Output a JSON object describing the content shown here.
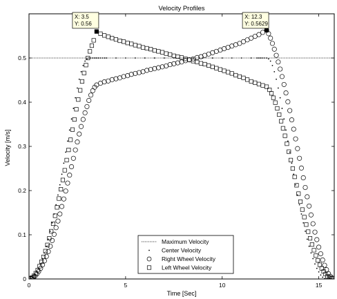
{
  "chart_data": {
    "type": "scatter",
    "title": "Velocity Profiles",
    "xlabel": "Time [Sec]",
    "ylabel": "Velocity [m/s]",
    "xlim": [
      0,
      15.8
    ],
    "ylim": [
      0,
      0.6
    ],
    "xticks": [
      0,
      5,
      10,
      15
    ],
    "yticks": [
      0,
      0.1,
      0.2,
      0.3,
      0.4,
      0.5
    ],
    "xtick_labels": [
      "0",
      "5",
      "10",
      "15"
    ],
    "ytick_labels": [
      "0",
      "0.1",
      "0.2",
      "0.3",
      "0.4",
      "0.5"
    ],
    "grid": false,
    "legend_position": "bottom-center",
    "series": [
      {
        "name": "Maximum Velocity",
        "style": "dotted-line",
        "x": [
          0,
          15.8
        ],
        "y": [
          0.5,
          0.5
        ]
      },
      {
        "name": "Center Velocity",
        "style": "dot",
        "x": [
          0.0,
          0.1,
          0.2,
          0.3,
          0.4,
          0.5,
          0.6,
          0.7,
          0.8,
          0.9,
          1.0,
          1.1,
          1.2,
          1.3,
          1.4,
          1.5,
          1.6,
          1.7,
          1.8,
          1.9,
          2.0,
          2.1,
          2.2,
          2.3,
          2.4,
          2.5,
          2.6,
          2.7,
          2.8,
          2.9,
          3.0,
          3.1,
          3.2,
          3.3,
          3.4,
          3.5,
          3.6,
          3.7,
          3.8,
          3.9,
          4.0,
          4.5,
          5.0,
          5.5,
          6.0,
          6.5,
          7.0,
          7.5,
          8.0,
          8.5,
          9.0,
          9.5,
          10.0,
          10.5,
          11.0,
          11.5,
          11.8,
          11.9,
          12.0,
          12.1,
          12.2,
          12.3,
          12.4,
          12.5,
          12.6,
          12.7,
          12.8,
          12.9,
          13.0,
          13.1,
          13.2,
          13.3,
          13.4,
          13.5,
          13.6,
          13.7,
          13.8,
          13.9,
          14.0,
          14.1,
          14.2,
          14.3,
          14.4,
          14.5,
          14.6,
          14.7,
          14.8,
          14.9,
          15.0,
          15.1,
          15.2,
          15.3,
          15.4,
          15.5,
          15.6,
          15.7
        ],
        "y": [
          0.0,
          0.001,
          0.004,
          0.009,
          0.016,
          0.024,
          0.034,
          0.046,
          0.059,
          0.074,
          0.09,
          0.108,
          0.127,
          0.147,
          0.168,
          0.19,
          0.213,
          0.237,
          0.262,
          0.287,
          0.312,
          0.337,
          0.362,
          0.386,
          0.41,
          0.432,
          0.452,
          0.469,
          0.483,
          0.493,
          0.498,
          0.5,
          0.5,
          0.5,
          0.5,
          0.5,
          0.5,
          0.5,
          0.5,
          0.5,
          0.5,
          0.5,
          0.5,
          0.5,
          0.5,
          0.5,
          0.5,
          0.5,
          0.5,
          0.5,
          0.5,
          0.5,
          0.5,
          0.5,
          0.5,
          0.5,
          0.5,
          0.5,
          0.5,
          0.5,
          0.5,
          0.5,
          0.498,
          0.493,
          0.483,
          0.469,
          0.452,
          0.432,
          0.41,
          0.386,
          0.362,
          0.337,
          0.312,
          0.287,
          0.262,
          0.237,
          0.213,
          0.19,
          0.168,
          0.147,
          0.127,
          0.108,
          0.09,
          0.074,
          0.059,
          0.046,
          0.034,
          0.024,
          0.016,
          0.009,
          0.004,
          0.001,
          0.0,
          0.0,
          0.0,
          0.0
        ]
      },
      {
        "name": "Right Wheel Velocity",
        "style": "circle",
        "x": [
          0.1,
          0.2,
          0.3,
          0.4,
          0.5,
          0.6,
          0.7,
          0.8,
          0.9,
          1.0,
          1.1,
          1.2,
          1.3,
          1.4,
          1.5,
          1.6,
          1.7,
          1.8,
          1.9,
          2.0,
          2.1,
          2.2,
          2.3,
          2.4,
          2.5,
          2.6,
          2.7,
          2.8,
          2.9,
          3.0,
          3.1,
          3.2,
          3.3,
          3.4,
          3.5,
          3.7,
          3.9,
          4.1,
          4.3,
          4.5,
          4.7,
          4.9,
          5.1,
          5.3,
          5.5,
          5.7,
          5.9,
          6.1,
          6.3,
          6.5,
          6.7,
          6.9,
          7.1,
          7.3,
          7.5,
          7.7,
          7.9,
          8.1,
          8.3,
          8.5,
          8.7,
          8.9,
          9.1,
          9.3,
          9.5,
          9.7,
          9.9,
          10.1,
          10.3,
          10.5,
          10.7,
          10.9,
          11.1,
          11.3,
          11.5,
          11.7,
          11.9,
          12.1,
          12.3,
          12.4,
          12.5,
          12.6,
          12.7,
          12.8,
          12.9,
          13.0,
          13.1,
          13.2,
          13.3,
          13.4,
          13.5,
          13.6,
          13.7,
          13.8,
          13.9,
          14.0,
          14.1,
          14.2,
          14.3,
          14.4,
          14.5,
          14.6,
          14.7,
          14.8,
          14.9,
          15.0,
          15.1,
          15.2,
          15.3,
          15.4,
          15.5,
          15.6,
          15.7
        ],
        "y": [
          0.001,
          0.003,
          0.006,
          0.011,
          0.017,
          0.024,
          0.032,
          0.041,
          0.051,
          0.062,
          0.074,
          0.087,
          0.101,
          0.116,
          0.131,
          0.147,
          0.164,
          0.181,
          0.199,
          0.217,
          0.235,
          0.254,
          0.273,
          0.292,
          0.31,
          0.328,
          0.345,
          0.361,
          0.376,
          0.39,
          0.404,
          0.416,
          0.426,
          0.434,
          0.439,
          0.443,
          0.446,
          0.448,
          0.451,
          0.453,
          0.455,
          0.458,
          0.46,
          0.463,
          0.465,
          0.467,
          0.469,
          0.472,
          0.474,
          0.476,
          0.478,
          0.48,
          0.482,
          0.485,
          0.487,
          0.489,
          0.491,
          0.494,
          0.496,
          0.498,
          0.501,
          0.503,
          0.506,
          0.509,
          0.512,
          0.515,
          0.518,
          0.521,
          0.524,
          0.527,
          0.53,
          0.533,
          0.537,
          0.541,
          0.545,
          0.549,
          0.553,
          0.558,
          0.5629,
          0.555,
          0.545,
          0.533,
          0.52,
          0.506,
          0.491,
          0.475,
          0.458,
          0.44,
          0.421,
          0.401,
          0.381,
          0.36,
          0.339,
          0.317,
          0.295,
          0.273,
          0.251,
          0.229,
          0.207,
          0.186,
          0.165,
          0.145,
          0.125,
          0.106,
          0.089,
          0.072,
          0.057,
          0.043,
          0.031,
          0.021,
          0.012,
          0.006,
          0.002
        ]
      },
      {
        "name": "Left Wheel Velocity",
        "style": "square",
        "x": [
          0.05,
          0.15,
          0.25,
          0.35,
          0.45,
          0.55,
          0.65,
          0.75,
          0.85,
          0.95,
          1.05,
          1.15,
          1.25,
          1.35,
          1.45,
          1.55,
          1.65,
          1.75,
          1.85,
          1.95,
          2.05,
          2.15,
          2.25,
          2.35,
          2.45,
          2.55,
          2.65,
          2.75,
          2.85,
          2.95,
          3.05,
          3.15,
          3.25,
          3.35,
          3.5,
          3.7,
          3.9,
          4.1,
          4.3,
          4.5,
          4.7,
          4.9,
          5.1,
          5.3,
          5.5,
          5.7,
          5.9,
          6.1,
          6.3,
          6.5,
          6.7,
          6.9,
          7.1,
          7.3,
          7.5,
          7.7,
          7.9,
          8.1,
          8.3,
          8.5,
          8.7,
          8.9,
          9.1,
          9.3,
          9.5,
          9.7,
          9.9,
          10.1,
          10.3,
          10.5,
          10.7,
          10.9,
          11.1,
          11.3,
          11.5,
          11.7,
          11.9,
          12.1,
          12.3,
          12.45,
          12.55,
          12.65,
          12.75,
          12.85,
          12.95,
          13.05,
          13.15,
          13.25,
          13.35,
          13.45,
          13.55,
          13.65,
          13.75,
          13.85,
          13.95,
          14.05,
          14.15,
          14.25,
          14.35,
          14.45,
          14.55,
          14.65,
          14.75,
          14.85,
          14.95,
          15.05,
          15.15,
          15.25,
          15.35,
          15.45,
          15.55,
          15.65
        ],
        "y": [
          0.001,
          0.003,
          0.007,
          0.013,
          0.02,
          0.029,
          0.039,
          0.05,
          0.063,
          0.077,
          0.092,
          0.108,
          0.125,
          0.143,
          0.162,
          0.182,
          0.203,
          0.224,
          0.246,
          0.269,
          0.292,
          0.315,
          0.338,
          0.361,
          0.384,
          0.406,
          0.427,
          0.447,
          0.466,
          0.484,
          0.5,
          0.515,
          0.528,
          0.54,
          0.56,
          0.555,
          0.551,
          0.548,
          0.545,
          0.542,
          0.539,
          0.537,
          0.534,
          0.532,
          0.529,
          0.527,
          0.524,
          0.522,
          0.52,
          0.517,
          0.515,
          0.513,
          0.51,
          0.508,
          0.505,
          0.503,
          0.501,
          0.498,
          0.496,
          0.493,
          0.491,
          0.488,
          0.486,
          0.483,
          0.48,
          0.477,
          0.474,
          0.471,
          0.468,
          0.465,
          0.461,
          0.458,
          0.455,
          0.451,
          0.447,
          0.444,
          0.441,
          0.438,
          0.435,
          0.428,
          0.42,
          0.41,
          0.399,
          0.386,
          0.372,
          0.357,
          0.341,
          0.324,
          0.306,
          0.288,
          0.269,
          0.25,
          0.231,
          0.212,
          0.193,
          0.175,
          0.157,
          0.14,
          0.123,
          0.107,
          0.092,
          0.078,
          0.065,
          0.053,
          0.042,
          0.032,
          0.024,
          0.017,
          0.011,
          0.006,
          0.003,
          0.001
        ]
      }
    ],
    "annotations": [
      {
        "x": 3.5,
        "y": 0.56,
        "line1": "X: 3.5",
        "line2": "Y: 0.56"
      },
      {
        "x": 12.3,
        "y": 0.5629,
        "line1": "X: 12.3",
        "line2": "Y: 0.5629"
      }
    ]
  },
  "colors": {
    "marker": "#000000",
    "axis": "#000000",
    "tooltip_background": "#ffffe1",
    "tooltip_border": "#000000",
    "background": "#ffffff"
  }
}
